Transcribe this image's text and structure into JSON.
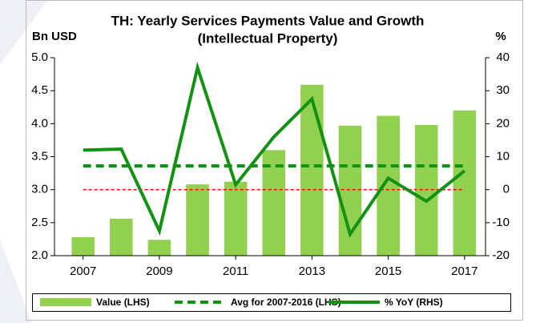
{
  "chart_data": {
    "type": "bar",
    "title": [
      "TH: Yearly Services Payments Value and Growth",
      "(Intellectual Property)"
    ],
    "y_label": "Bn USD",
    "y2_label": "%",
    "x": [
      2007,
      2008,
      2009,
      2010,
      2011,
      2012,
      2013,
      2014,
      2015,
      2016,
      2017
    ],
    "xlim": [
      2006.25,
      2017.55
    ],
    "xticks": [
      2007,
      2009,
      2011,
      2013,
      2015,
      2017
    ],
    "ylim": [
      2.0,
      5.0
    ],
    "yticks": [
      {
        "value": 2.0,
        "label": "2.0"
      },
      {
        "value": 2.5,
        "label": "2.5"
      },
      {
        "value": 3.0,
        "label": "3.0"
      },
      {
        "value": 3.5,
        "label": "3.5"
      },
      {
        "value": 4.0,
        "label": "4.0"
      },
      {
        "value": 4.5,
        "label": "4.5"
      },
      {
        "value": 5.0,
        "label": "5.0"
      }
    ],
    "y2lim": [
      -20,
      40
    ],
    "y2ticks": [
      -20,
      -10,
      0,
      10,
      20,
      30,
      40
    ],
    "series": [
      {
        "name": "Value (LHS)",
        "type": "bar",
        "color": "#92d050",
        "values": [
          2.28,
          2.56,
          2.24,
          3.08,
          3.12,
          3.6,
          4.59,
          3.97,
          4.12,
          3.98,
          4.2
        ]
      },
      {
        "name": "Avg for 2007-2016 (LHS)",
        "type": "line",
        "style": "dashed",
        "color": "#129212",
        "values": [
          3.36,
          3.36,
          3.36,
          3.36,
          3.36,
          3.36,
          3.36,
          3.36,
          3.36,
          3.36,
          3.36
        ]
      },
      {
        "name": "% YoY (RHS)",
        "type": "line",
        "style": "solid",
        "color": "#129212",
        "axis": "y2",
        "values": [
          12,
          12.3,
          -12.5,
          37,
          1.5,
          16,
          27.5,
          -13.5,
          3.5,
          -3.5,
          5.7
        ]
      }
    ],
    "reference_lines": [
      {
        "value": 0,
        "axis": "y2",
        "color": "#ff0000",
        "style": "dotted"
      }
    ],
    "legend": "bottom"
  }
}
